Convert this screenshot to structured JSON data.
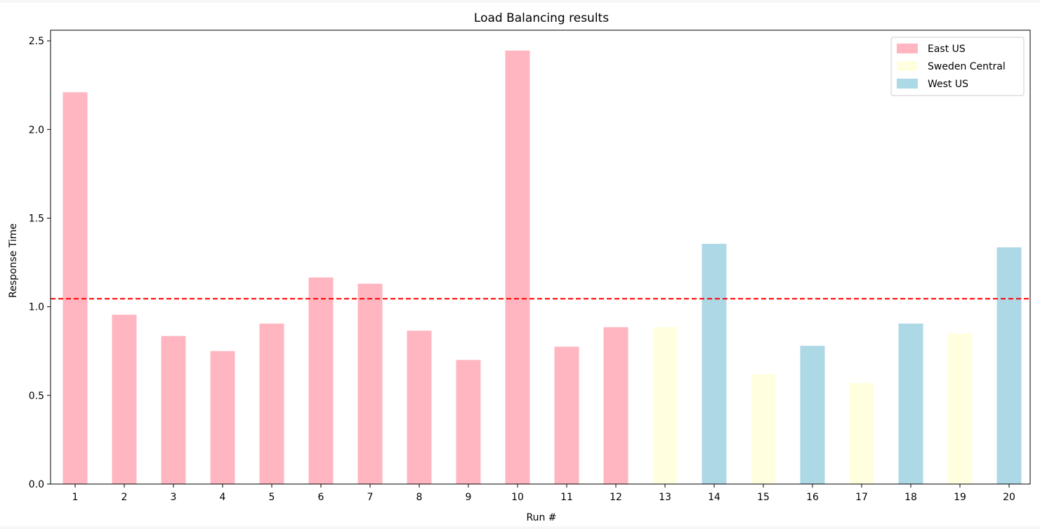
{
  "chart_data": {
    "type": "bar",
    "title": "Load Balancing results",
    "xlabel": "Run #",
    "ylabel": "Response Time",
    "ylim": [
      0,
      2.56
    ],
    "yticks": [
      0.0,
      0.5,
      1.0,
      1.5,
      2.0,
      2.5
    ],
    "ytick_labels": [
      "0.0",
      "0.5",
      "1.0",
      "1.5",
      "2.0",
      "2.5"
    ],
    "categories": [
      "1",
      "2",
      "3",
      "4",
      "5",
      "6",
      "7",
      "8",
      "9",
      "10",
      "11",
      "12",
      "13",
      "14",
      "15",
      "16",
      "17",
      "18",
      "19",
      "20"
    ],
    "values": [
      2.21,
      0.955,
      0.835,
      0.75,
      0.905,
      1.165,
      1.13,
      0.865,
      0.7,
      2.445,
      0.775,
      0.885,
      0.885,
      1.355,
      0.62,
      0.78,
      0.57,
      0.905,
      0.85,
      1.335
    ],
    "regions": [
      "East US",
      "East US",
      "East US",
      "East US",
      "East US",
      "East US",
      "East US",
      "East US",
      "East US",
      "East US",
      "East US",
      "East US",
      "Sweden Central",
      "West US",
      "Sweden Central",
      "West US",
      "Sweden Central",
      "West US",
      "Sweden Central",
      "West US"
    ],
    "legend": [
      {
        "name": "East US",
        "color": "#ffb6c1"
      },
      {
        "name": "Sweden Central",
        "color": "#ffffe0"
      },
      {
        "name": "West US",
        "color": "#add8e6"
      }
    ],
    "legend_position": "top-right",
    "reference_line": {
      "value": 1.045,
      "color": "#ff0000",
      "style": "dashed"
    },
    "grid": false
  }
}
